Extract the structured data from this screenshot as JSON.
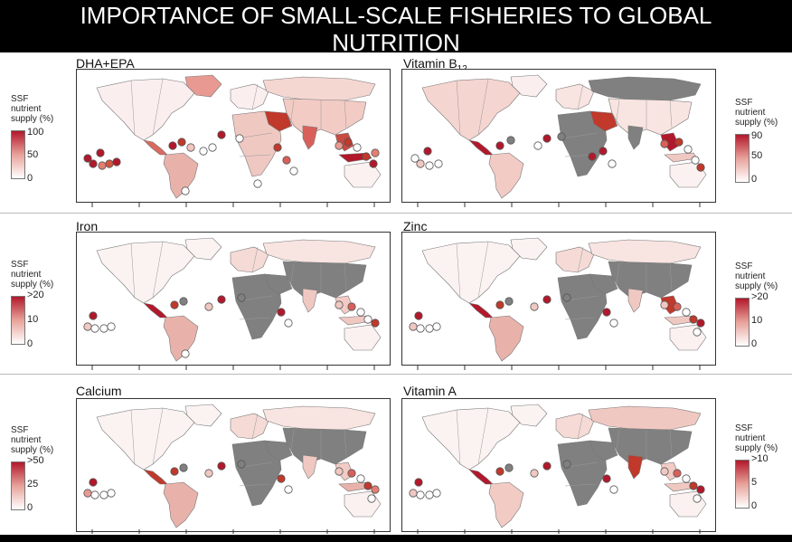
{
  "header": {
    "title": "IMPORTANCE OF SMALL-SCALE FISHERIES TO GLOBAL NUTRITION"
  },
  "colors": {
    "high": "#b2182b",
    "mid": "#e8a29a",
    "low": "#fbeeed",
    "no_data": "#808080",
    "ocean": "#ffffff"
  },
  "panels": [
    {
      "title": "DHA+EPA",
      "title_sub": "",
      "legend": {
        "label_lines": [
          "SSF",
          "nutrient",
          "supply (%)"
        ],
        "ticks": [
          "100",
          "50",
          "0"
        ]
      }
    },
    {
      "title": "Vitamin B",
      "title_sub": "12",
      "legend": {
        "label_lines": [
          "SSF",
          "nutrient",
          "supply (%)"
        ],
        "ticks": [
          "90",
          "50",
          "0"
        ]
      }
    },
    {
      "title": "Iron",
      "title_sub": "",
      "legend": {
        "label_lines": [
          "SSF",
          "nutrient",
          "supply (%)"
        ],
        "ticks": [
          ">20",
          "10",
          "0"
        ]
      }
    },
    {
      "title": "Zinc",
      "title_sub": "",
      "legend": {
        "label_lines": [
          "SSF",
          "nutrient",
          "supply (%)"
        ],
        "ticks": [
          ">20",
          "10",
          "0"
        ]
      }
    },
    {
      "title": "Calcium",
      "title_sub": "",
      "legend": {
        "label_lines": [
          "SSF",
          "nutrient",
          "supply (%)"
        ],
        "ticks": [
          ">50",
          "25",
          "0"
        ]
      }
    },
    {
      "title": "Vitamin A",
      "title_sub": "",
      "legend": {
        "label_lines": [
          "SSF",
          "nutrient",
          "supply (%)"
        ],
        "ticks": [
          ">10",
          "5",
          "0"
        ]
      }
    }
  ]
}
